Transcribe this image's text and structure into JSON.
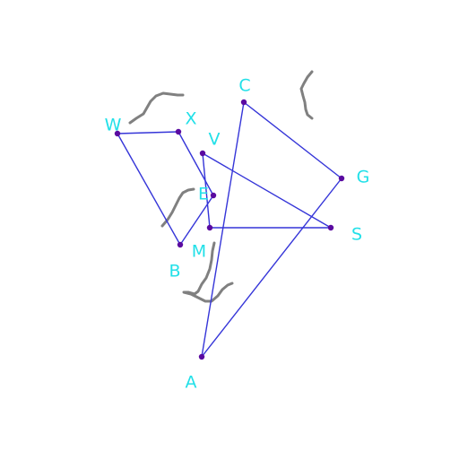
{
  "colors": {
    "background": "#ffffff",
    "edge": "#3535d8",
    "vertex": "#5a0aa0",
    "label": "#22e0e8",
    "stroke_mark": "#808080"
  },
  "points": [
    {
      "id": "C",
      "label": "C"
    },
    {
      "id": "G",
      "label": "G"
    },
    {
      "id": "A",
      "label": "A"
    },
    {
      "id": "W",
      "label": "W"
    },
    {
      "id": "X",
      "label": "X"
    },
    {
      "id": "V",
      "label": "V"
    },
    {
      "id": "E",
      "label": "E"
    },
    {
      "id": "B",
      "label": "B"
    },
    {
      "id": "M",
      "label": "M"
    },
    {
      "id": "S",
      "label": "S"
    }
  ],
  "segments": [
    [
      "C",
      "G"
    ],
    [
      "G",
      "A"
    ],
    [
      "A",
      "C"
    ],
    [
      "W",
      "X"
    ],
    [
      "X",
      "E"
    ],
    [
      "E",
      "B"
    ],
    [
      "B",
      "W"
    ],
    [
      "V",
      "S"
    ],
    [
      "S",
      "M"
    ],
    [
      "M",
      "V"
    ]
  ],
  "decorative_strokes": [
    "stroke-top-left",
    "stroke-top-right",
    "stroke-middle-left",
    "stroke-lower-middle"
  ]
}
